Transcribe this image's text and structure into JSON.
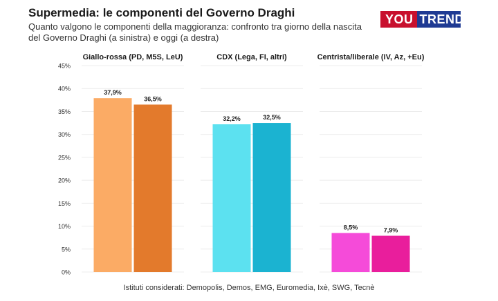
{
  "header": {
    "title": "Supermedia: le componenti del Governo Draghi",
    "subtitle": "Quanto valgono le componenti della maggioranza: confronto tra giorno della nascita del Governo Draghi (a sinistra) e oggi (a destra)"
  },
  "logo": {
    "part1": "YOU",
    "part2": "TREND"
  },
  "footer": {
    "note": "Istituti considerati: Demopolis, Demos, EMG, Euromedia, Ixè, SWG, Tecnè"
  },
  "chart_data": {
    "type": "bar",
    "y_ticks": [
      "0%",
      "5%",
      "10%",
      "15%",
      "20%",
      "25%",
      "30%",
      "35%",
      "40%",
      "45%"
    ],
    "ylim": [
      0,
      45
    ],
    "grid": true,
    "panels": [
      {
        "label": "Giallo-rossa (PD, M5S, LeU)",
        "values": [
          37.9,
          36.5
        ],
        "value_labels": [
          "37,9%",
          "36,5%"
        ],
        "colors": [
          "#fbab65",
          "#e37a2c"
        ]
      },
      {
        "label": "CDX (Lega, FI, altri)",
        "values": [
          32.2,
          32.5
        ],
        "value_labels": [
          "32,2%",
          "32,5%"
        ],
        "colors": [
          "#5ce1f0",
          "#1bb3d1"
        ]
      },
      {
        "label": "Centrista/liberale (IV, Az, +Eu)",
        "values": [
          8.5,
          7.9
        ],
        "value_labels": [
          "8,5%",
          "7,9%"
        ],
        "colors": [
          "#f54bd9",
          "#e91e9c"
        ]
      }
    ]
  }
}
